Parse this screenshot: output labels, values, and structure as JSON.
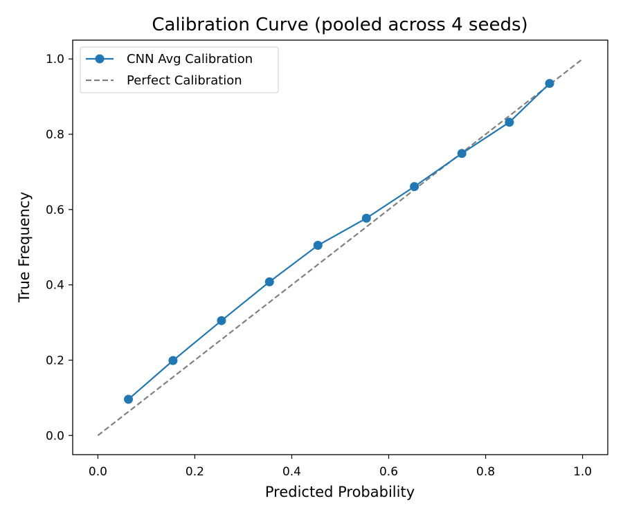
{
  "chart_data": {
    "type": "line",
    "title": "Calibration Curve (pooled across 4 seeds)",
    "xlabel": "Predicted Probability",
    "ylabel": "True Frequency",
    "xlim": [
      -0.052,
      1.052
    ],
    "ylim": [
      -0.051,
      1.05
    ],
    "xticks": [
      0.0,
      0.2,
      0.4,
      0.6,
      0.8,
      1.0
    ],
    "yticks": [
      0.0,
      0.2,
      0.4,
      0.6,
      0.8,
      1.0
    ],
    "xtick_labels": [
      "0.0",
      "0.2",
      "0.4",
      "0.6",
      "0.8",
      "1.0"
    ],
    "ytick_labels": [
      "0.0",
      "0.2",
      "0.4",
      "0.6",
      "0.8",
      "1.0"
    ],
    "grid": false,
    "legend_position": "top-left",
    "series": [
      {
        "name": "CNN Avg Calibration",
        "style": "solid-with-markers",
        "color": "#1f77b4",
        "x": [
          0.063,
          0.155,
          0.255,
          0.354,
          0.454,
          0.554,
          0.653,
          0.751,
          0.849,
          0.932
        ],
        "y": [
          0.096,
          0.199,
          0.305,
          0.408,
          0.505,
          0.577,
          0.661,
          0.749,
          0.832,
          0.935
        ]
      },
      {
        "name": "Perfect Calibration",
        "style": "dashed",
        "color": "#7f7f7f",
        "x": [
          0.0,
          1.0
        ],
        "y": [
          0.0,
          1.0
        ]
      }
    ]
  }
}
